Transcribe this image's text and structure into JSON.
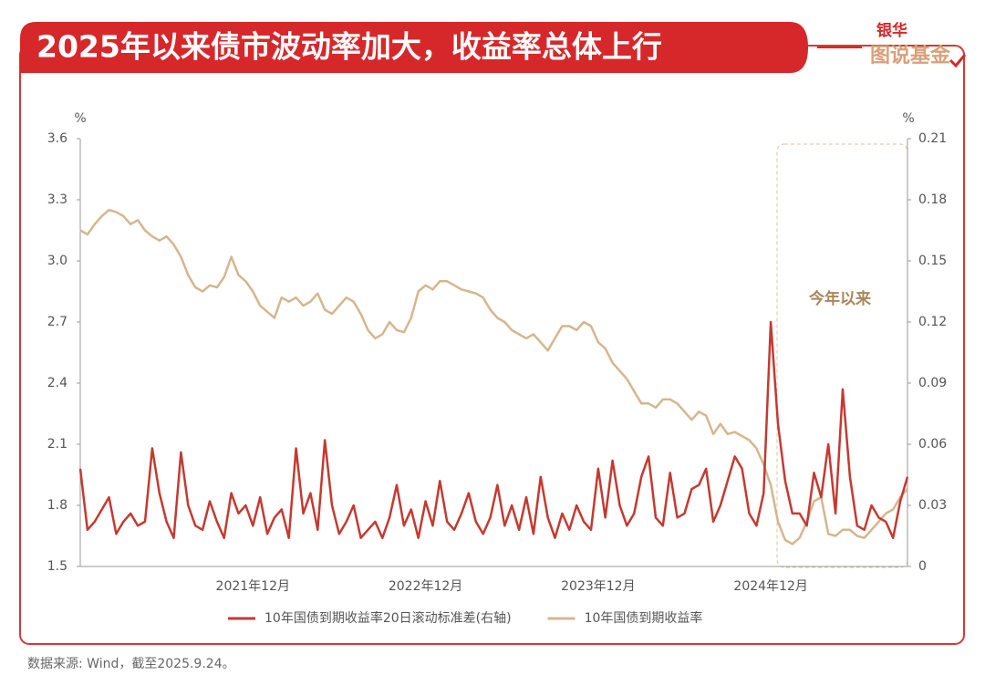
{
  "chart_data": {
    "type": "line",
    "title": "2025年以来债市波动率加大，收益率总体上行",
    "source": "数据来源: Wind，截至2025.9.24。",
    "annotation": "今年以来",
    "y_unit": "%",
    "y2_unit": "%",
    "categories": [
      null,
      null,
      null,
      null,
      null,
      null,
      null,
      null,
      null,
      null,
      null,
      null,
      null,
      null,
      null,
      null,
      null,
      null,
      null,
      null,
      null,
      null,
      null,
      null,
      "2021年12月",
      null,
      null,
      null,
      null,
      null,
      null,
      null,
      null,
      null,
      null,
      null,
      null,
      null,
      null,
      null,
      null,
      null,
      null,
      null,
      null,
      null,
      null,
      null,
      "2022年12月",
      null,
      null,
      null,
      null,
      null,
      null,
      null,
      null,
      null,
      null,
      null,
      null,
      null,
      null,
      null,
      null,
      null,
      null,
      null,
      null,
      null,
      null,
      null,
      "2023年12月",
      null,
      null,
      null,
      null,
      null,
      null,
      null,
      null,
      null,
      null,
      null,
      null,
      null,
      null,
      null,
      null,
      null,
      null,
      null,
      null,
      null,
      null,
      null,
      "2024年12月",
      null,
      null,
      null,
      null,
      null,
      null,
      null,
      null,
      null,
      null,
      null,
      null,
      null,
      null,
      null,
      null,
      null,
      null,
      null
    ],
    "series": [
      {
        "name": "10年国债到期收益率20日滚动标准差(右轴)",
        "color": "#c43a31",
        "axis": "y2",
        "values": [
          0.048,
          0.018,
          0.022,
          0.028,
          0.034,
          0.016,
          0.022,
          0.026,
          0.02,
          0.022,
          0.058,
          0.036,
          0.022,
          0.014,
          0.056,
          0.03,
          0.02,
          0.018,
          0.032,
          0.022,
          0.014,
          0.036,
          0.026,
          0.03,
          0.02,
          0.034,
          0.016,
          0.024,
          0.028,
          0.014,
          0.058,
          0.026,
          0.036,
          0.018,
          0.062,
          0.03,
          0.016,
          0.022,
          0.03,
          0.014,
          0.018,
          0.022,
          0.014,
          0.024,
          0.04,
          0.02,
          0.028,
          0.014,
          0.032,
          0.02,
          0.042,
          0.022,
          0.018,
          0.026,
          0.036,
          0.022,
          0.016,
          0.024,
          0.04,
          0.02,
          0.03,
          0.018,
          0.034,
          0.016,
          0.044,
          0.024,
          0.014,
          0.026,
          0.018,
          0.03,
          0.022,
          0.018,
          0.048,
          0.024,
          0.052,
          0.03,
          0.02,
          0.026,
          0.044,
          0.054,
          0.024,
          0.02,
          0.046,
          0.024,
          0.026,
          0.038,
          0.04,
          0.048,
          0.022,
          0.03,
          0.042,
          0.054,
          0.048,
          0.026,
          0.02,
          0.036,
          0.12,
          0.07,
          0.042,
          0.026,
          0.026,
          0.02,
          0.046,
          0.034,
          0.06,
          0.026,
          0.087,
          0.044,
          0.02,
          0.018,
          0.03,
          0.024,
          0.022,
          0.014,
          0.032,
          0.044
        ]
      },
      {
        "name": "10年国债到期收益率",
        "color": "#d5b68f",
        "values": [
          3.15,
          3.13,
          3.18,
          3.22,
          3.25,
          3.24,
          3.22,
          3.18,
          3.2,
          3.15,
          3.12,
          3.1,
          3.12,
          3.08,
          3.02,
          2.93,
          2.87,
          2.85,
          2.88,
          2.87,
          2.92,
          3.02,
          2.93,
          2.9,
          2.85,
          2.78,
          2.75,
          2.72,
          2.82,
          2.8,
          2.82,
          2.78,
          2.8,
          2.84,
          2.76,
          2.74,
          2.78,
          2.82,
          2.8,
          2.74,
          2.66,
          2.62,
          2.64,
          2.7,
          2.66,
          2.65,
          2.72,
          2.85,
          2.88,
          2.86,
          2.9,
          2.9,
          2.88,
          2.86,
          2.85,
          2.84,
          2.82,
          2.76,
          2.72,
          2.7,
          2.66,
          2.64,
          2.62,
          2.64,
          2.6,
          2.56,
          2.62,
          2.68,
          2.68,
          2.66,
          2.7,
          2.68,
          2.6,
          2.57,
          2.5,
          2.46,
          2.42,
          2.36,
          2.3,
          2.3,
          2.28,
          2.32,
          2.32,
          2.3,
          2.26,
          2.22,
          2.26,
          2.24,
          2.15,
          2.2,
          2.15,
          2.16,
          2.14,
          2.12,
          2.08,
          2.0,
          1.9,
          1.72,
          1.63,
          1.61,
          1.64,
          1.72,
          1.82,
          1.84,
          1.66,
          1.65,
          1.68,
          1.68,
          1.65,
          1.64,
          1.68,
          1.72,
          1.76,
          1.78,
          1.84,
          1.88
        ]
      }
    ],
    "ylim": [
      1.5,
      3.6
    ],
    "yticks": [
      1.5,
      1.8,
      2.1,
      2.4,
      2.7,
      {
        "value": 3,
        "label": "3.0"
      },
      3.3,
      3.6
    ],
    "y2lim": [
      0,
      0.21
    ],
    "y2ticks": [
      0,
      0.03,
      0.06,
      0.09,
      0.12,
      0.15,
      0.18,
      0.21
    ],
    "legend": "bottom"
  },
  "branding": {
    "line1": "银华",
    "line2": "图说基金"
  }
}
